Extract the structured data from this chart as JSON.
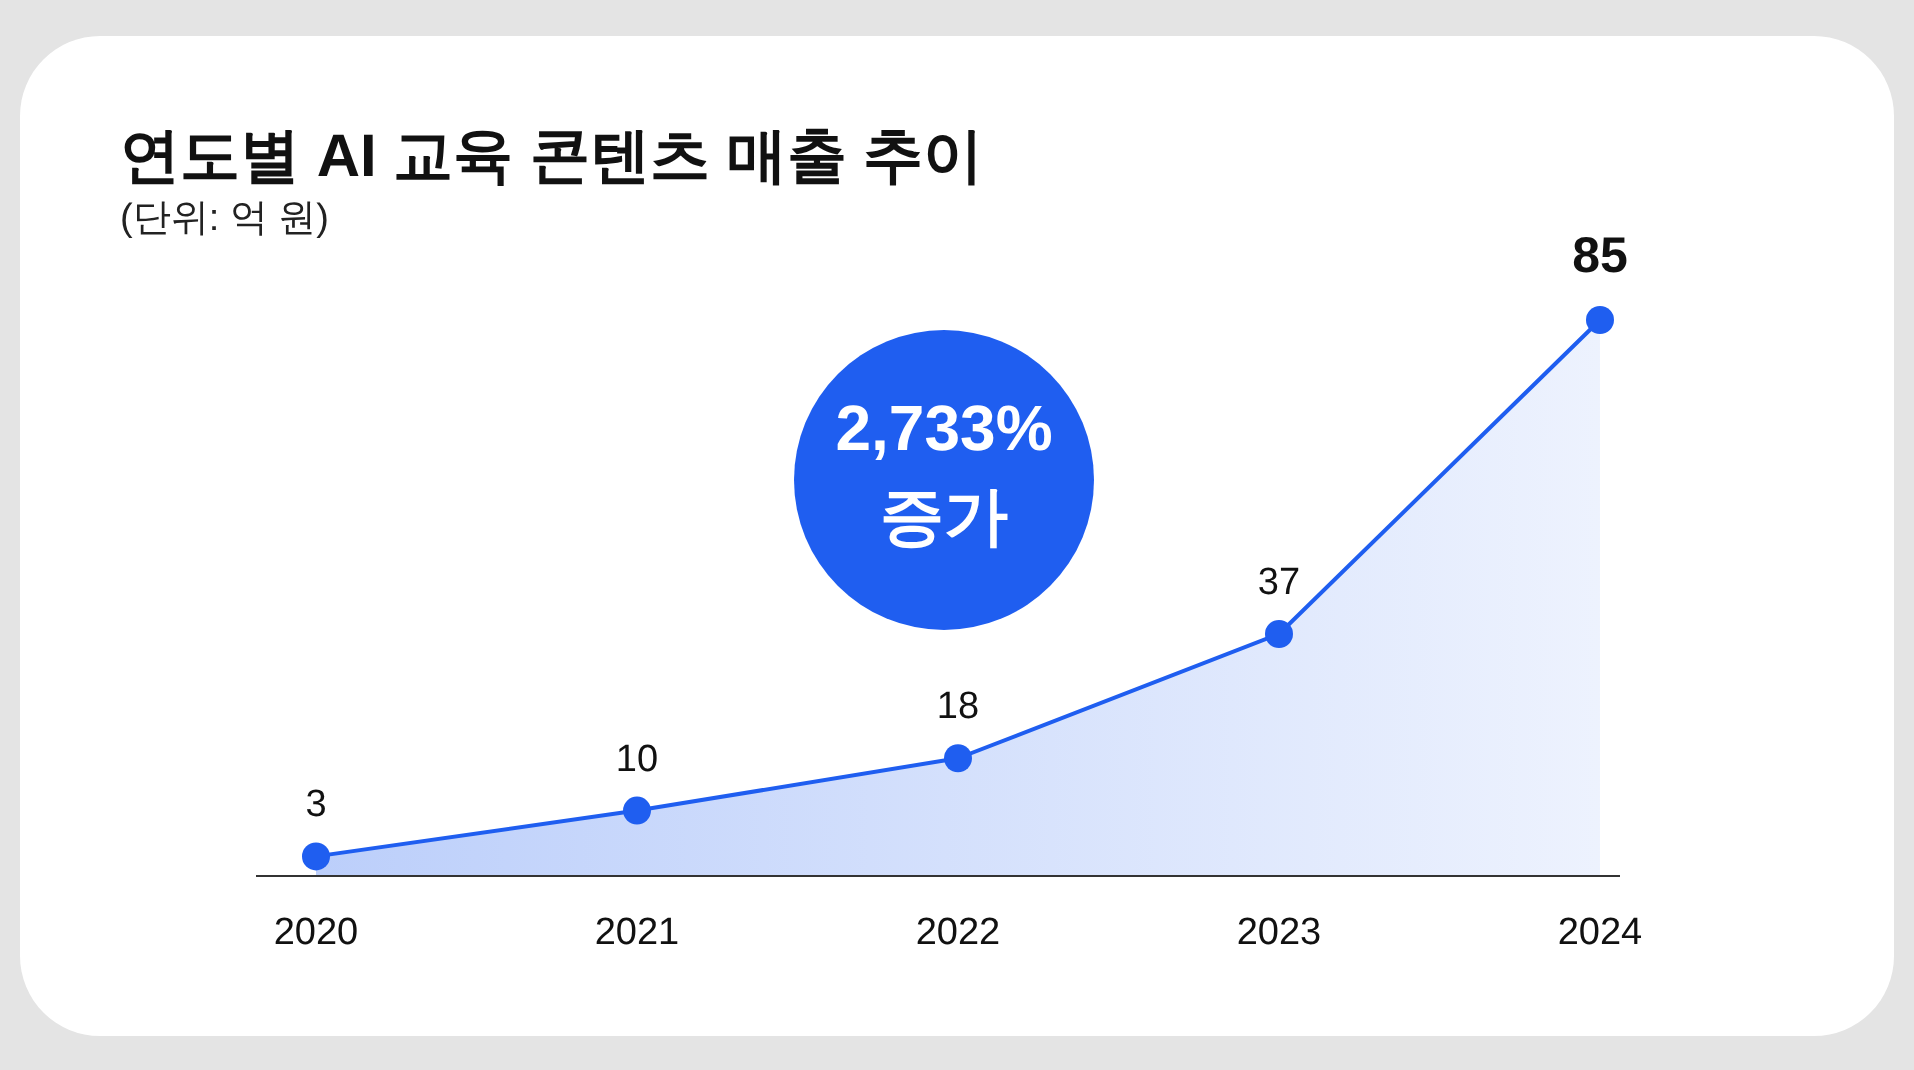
{
  "chart_data": {
    "type": "area",
    "title": "연도별 AI 교육 콘텐츠 매출 추이",
    "subtitle": "(단위: 억 원)",
    "categories": [
      "2020",
      "2021",
      "2022",
      "2023",
      "2024"
    ],
    "series": [
      {
        "color": "#1f5ef0",
        "values": [
          3,
          10,
          18,
          37,
          85
        ]
      }
    ],
    "data_labels": true,
    "marker": "circle",
    "line_style": "solid",
    "annotations": [
      "2,733% 증가"
    ]
  }
}
